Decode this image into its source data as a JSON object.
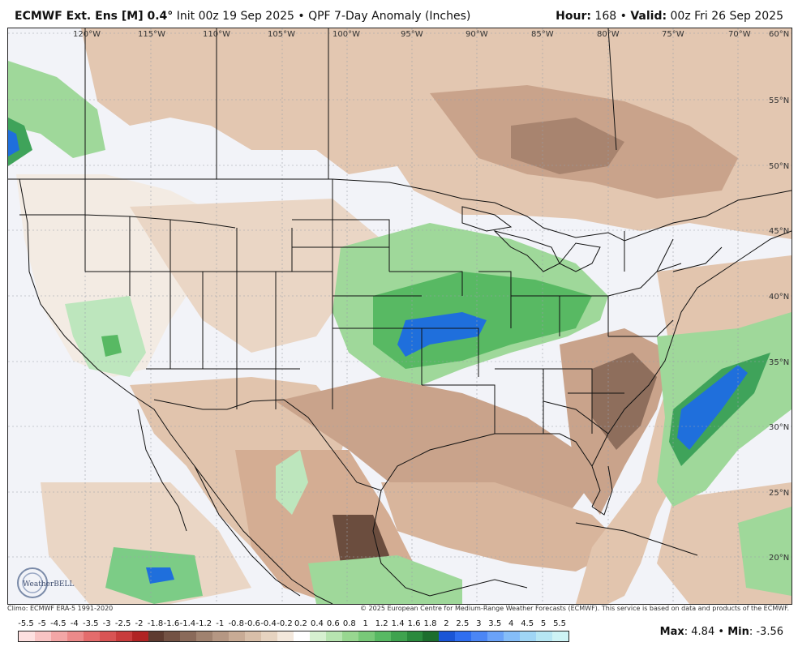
{
  "header": {
    "model": "ECMWF Ext. Ens [M] 0.4",
    "degree": "°",
    "init_text": "Init 00z 19 Sep 2025",
    "product": "QPF 7-Day Anomaly (Inches)",
    "separator": "•",
    "hour_label": "Hour:",
    "hour_value": "168",
    "valid_label": "Valid:",
    "valid_value": "00z Fri 26 Sep 2025"
  },
  "map": {
    "lon_labels": [
      "120°W",
      "115°W",
      "110°W",
      "105°W",
      "100°W",
      "95°W",
      "90°W",
      "85°W",
      "80°W",
      "75°W",
      "70°W"
    ],
    "lat_labels": [
      "60°N",
      "55°N",
      "50°N",
      "45°N",
      "40°N",
      "35°N",
      "30°N",
      "25°N",
      "20°N"
    ],
    "logo_text": "WeatherBELL",
    "colors": {
      "ocean_dry": "#f2f3f8",
      "brown_light": "#e6ccb6",
      "brown_mid": "#d4ad93",
      "brown_dark": "#a8846f",
      "green_light": "#bde6bd",
      "green_mid": "#7ccc86",
      "green_dark": "#3fa35a",
      "blue": "#1f6fdc"
    }
  },
  "credits": {
    "climo": "Climo: ECMWF ERA-5 1991-2020",
    "copyright": "© 2025 European Centre for Medium-Range Weather Forecasts (ECMWF). This service is based on data and products of the ECMWF."
  },
  "legend": {
    "ticks": [
      "-5.5",
      "-5",
      "-4.5",
      "-4",
      "-3.5",
      "-3",
      "-2.5",
      "-2",
      "-1.8",
      "-1.6",
      "-1.4",
      "-1.2",
      "-1",
      "-0.8",
      "-0.6",
      "-0.4",
      "-0.2",
      "0.2",
      "0.4",
      "0.6",
      "0.8",
      "1",
      "1.2",
      "1.4",
      "1.6",
      "1.8",
      "2",
      "2.5",
      "3",
      "3.5",
      "4",
      "4.5",
      "5",
      "5.5"
    ],
    "colors": [
      "#fde0e0",
      "#f8c4c4",
      "#f3a6a6",
      "#ec8a8a",
      "#e46c6c",
      "#d85454",
      "#c83c3c",
      "#b02424",
      "#5e3b30",
      "#735244",
      "#8a6a5a",
      "#a0826f",
      "#b59783",
      "#c8ab95",
      "#d8bfa9",
      "#e6d3c0",
      "#f3e8dc",
      "#ffffff",
      "#d6f0d0",
      "#b7e4b0",
      "#98d790",
      "#78c978",
      "#58b963",
      "#3fa34f",
      "#2a8a3d",
      "#1d6e2e",
      "#1a55d6",
      "#2f6ef0",
      "#4b86f5",
      "#6aa2f8",
      "#85bdf8",
      "#9fd5f5",
      "#b6e6f3",
      "#cdf3f5"
    ],
    "max_label": "Max",
    "max_value": "4.84",
    "min_label": "Min",
    "min_value": "-3.56"
  }
}
